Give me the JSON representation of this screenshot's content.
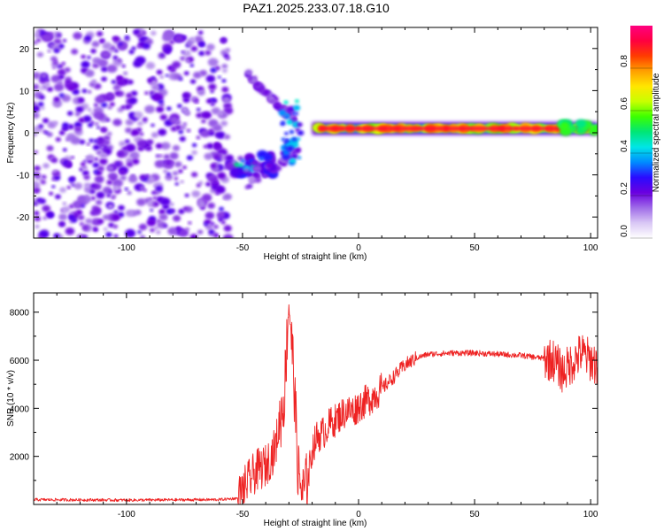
{
  "chart_data": [
    {
      "type": "heatmap",
      "title": "PAZ1.2025.233.07.18.G10",
      "xlabel": "Height of straight line (km)",
      "ylabel": "Frequency (Hz)",
      "xlim": [
        -140,
        103
      ],
      "ylim": [
        -25,
        25
      ],
      "x_ticks": [
        -100,
        -50,
        0,
        50,
        100
      ],
      "y_ticks": [
        -20,
        -10,
        0,
        10,
        20
      ],
      "colorbar": {
        "label": "Normalized spectral amplitude",
        "range": [
          0,
          1
        ],
        "ticks": [
          "0.0",
          "0.2",
          "0.4",
          "0.6",
          "0.8"
        ],
        "colors": [
          "#ffffff",
          "#d9c7f5",
          "#9f6be8",
          "#6a00e0",
          "#2a0bff",
          "#008cff",
          "#00e6e6",
          "#00e676",
          "#3cff00",
          "#c8ff00",
          "#ffe600",
          "#ffa000",
          "#ff3c00",
          "#ff0040",
          "#ff0080"
        ]
      },
      "regions": [
        {
          "name": "noise-speckle",
          "x_range": [
            -140,
            -56
          ],
          "freq_range": [
            -25,
            24
          ],
          "amplitude_range": [
            0.0,
            0.15
          ]
        },
        {
          "name": "low-tail",
          "x_range": [
            -56,
            -36
          ],
          "freq_range": [
            -10,
            -5
          ],
          "amplitude_range": [
            0.1,
            0.5
          ]
        },
        {
          "name": "converging-arc",
          "x_range": [
            -48,
            -26
          ],
          "freq_range": [
            -13,
            14
          ],
          "amplitude_range": [
            0.05,
            0.25
          ]
        },
        {
          "name": "carrier-line",
          "x_range": [
            -20,
            103
          ],
          "freq_center": 1.0,
          "freq_width": 1.5,
          "amplitude_range": [
            0.6,
            1.0
          ]
        }
      ]
    },
    {
      "type": "line",
      "xlabel": "Height of straight line (km)",
      "ylabel": "SNR (10 * v/v)",
      "xlim": [
        -140,
        103
      ],
      "ylim": [
        0,
        8800
      ],
      "x_ticks": [
        -100,
        -50,
        0,
        50,
        100
      ],
      "y_ticks": [
        2000,
        4000,
        6000,
        8000
      ],
      "series": [
        {
          "name": "SNR",
          "color": "#ee2222",
          "x": [
            -140,
            -100,
            -60,
            -52,
            -48,
            -44,
            -40,
            -36,
            -32,
            -30,
            -28,
            -26,
            -24,
            -22,
            -20,
            -18,
            -15,
            -12,
            -10,
            -8,
            -5,
            -2,
            0,
            5,
            10,
            15,
            20,
            25,
            30,
            40,
            50,
            60,
            70,
            78,
            84,
            88,
            92,
            96,
            100,
            103
          ],
          "values": [
            200,
            180,
            200,
            260,
            900,
            1400,
            1600,
            2300,
            4500,
            8600,
            5500,
            1300,
            400,
            900,
            2300,
            2800,
            3000,
            3400,
            3500,
            3700,
            3900,
            3900,
            4100,
            4400,
            4800,
            5300,
            5800,
            6100,
            6250,
            6300,
            6300,
            6250,
            6200,
            6100,
            6000,
            5500,
            5900,
            6300,
            6000,
            5800
          ]
        }
      ]
    }
  ]
}
